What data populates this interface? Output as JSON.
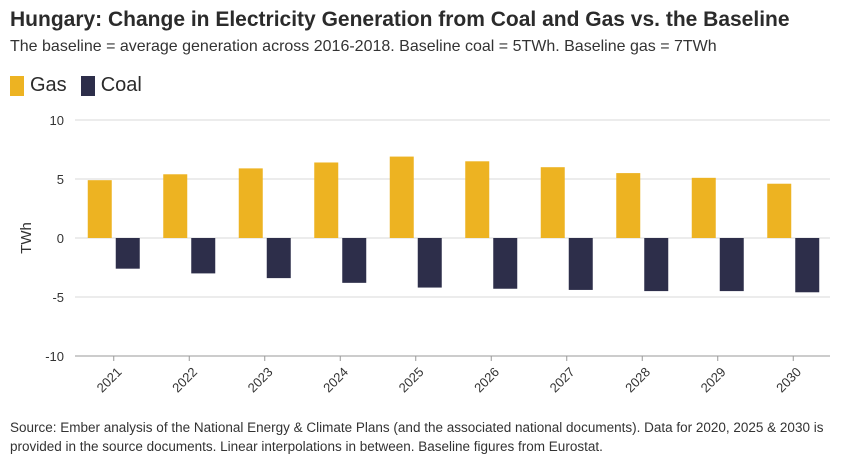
{
  "title": "Hungary: Change in Electricity Generation from Coal and Gas vs. the Baseline",
  "subtitle": "The baseline = average generation across 2016-2018. Baseline coal = 5TWh. Baseline gas = 7TWh",
  "source": "Source: Ember analysis of the National Energy & Climate Plans (and the associated national documents). Data for 2020, 2025 & 2030 is provided in the source documents. Linear interpolations in between. Baseline figures from Eurostat.",
  "colors": {
    "gas": "#EDB322",
    "coal": "#2D2E4A",
    "grid": "#D9D9D9",
    "axis": "#999999"
  },
  "chart_data": {
    "type": "bar",
    "categories": [
      "2021",
      "2022",
      "2023",
      "2024",
      "2025",
      "2026",
      "2027",
      "2028",
      "2029",
      "2030"
    ],
    "series": [
      {
        "name": "Gas",
        "values": [
          4.9,
          5.4,
          5.9,
          6.4,
          6.9,
          6.5,
          6.0,
          5.5,
          5.1,
          4.6
        ]
      },
      {
        "name": "Coal",
        "values": [
          -2.6,
          -3.0,
          -3.4,
          -3.8,
          -4.2,
          -4.3,
          -4.4,
          -4.5,
          -4.5,
          -4.6
        ]
      }
    ],
    "ylabel": "TWh",
    "ylim": [
      -10,
      10
    ],
    "yticks": [
      "10",
      "5",
      "0",
      "-5",
      "-10"
    ],
    "grid": true,
    "legend": "top-left"
  }
}
